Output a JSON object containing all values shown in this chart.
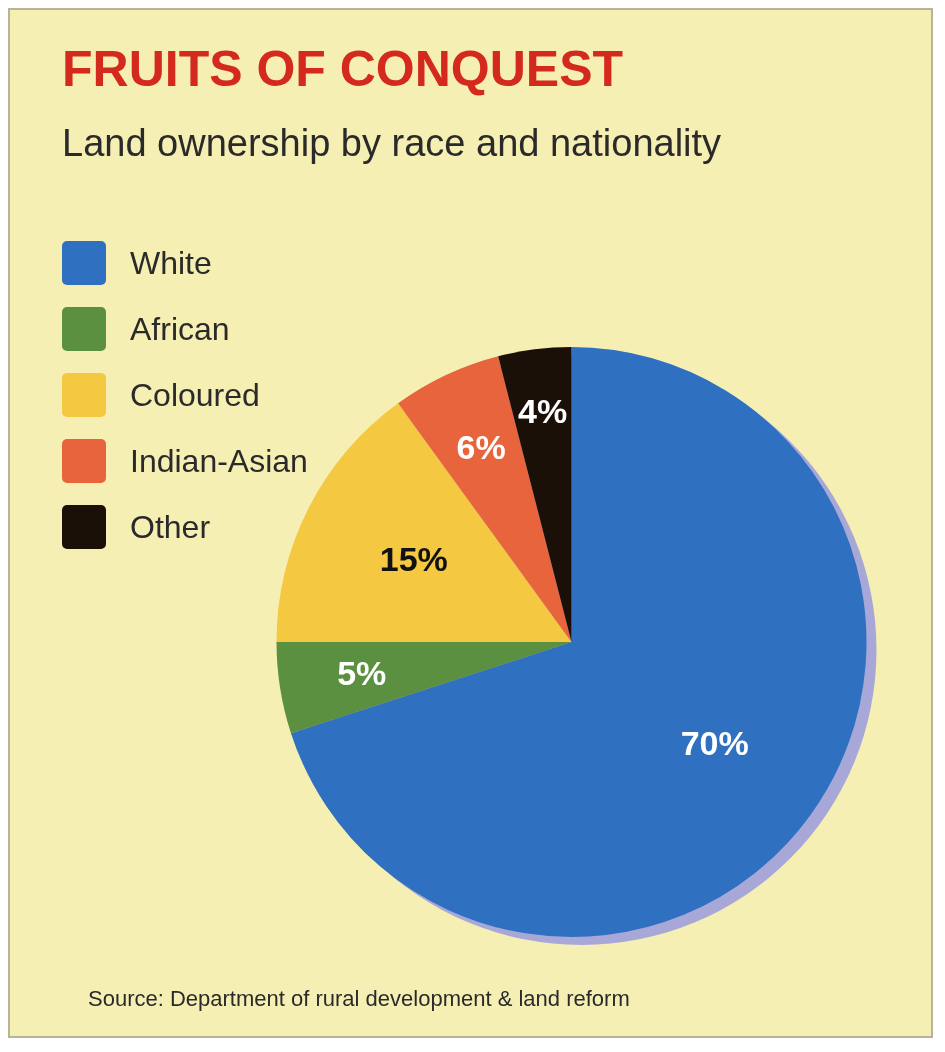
{
  "chart_data": {
    "type": "pie",
    "title": "FRUITS OF CONQUEST",
    "subtitle": "Land ownership by race and nationality",
    "categories": [
      "White",
      "African",
      "Coloured",
      "Indian-Asian",
      "Other"
    ],
    "values": [
      70,
      5,
      15,
      6,
      4
    ],
    "colors": [
      "#3070c0",
      "#5a9040",
      "#f5c842",
      "#e8643c",
      "#1a1008"
    ],
    "value_labels": [
      "70%",
      "5%",
      "15%",
      "6%",
      "4%"
    ],
    "legend": "top left",
    "annotations": [
      "Source: Department of rural development & land reform"
    ]
  }
}
